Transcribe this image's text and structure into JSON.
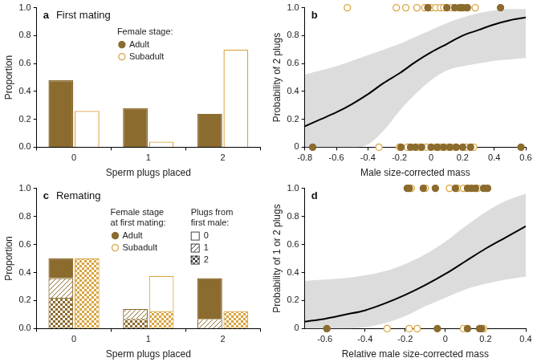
{
  "chart_data": [
    {
      "type": "bar",
      "panel_label": "a",
      "title": "First mating",
      "x_label": "Sperm plugs placed",
      "y_label": "Proportion",
      "categories": [
        "0",
        "1",
        "2"
      ],
      "legend_title": [
        "Female stage:"
      ],
      "series": [
        {
          "name": "Adult",
          "color": "#8b6b2e",
          "marker": "circle",
          "values": [
            0.48,
            0.28,
            0.24
          ]
        },
        {
          "name": "Subadult",
          "color": "#d9a441",
          "marker": "open_circle",
          "values": [
            0.26,
            0.04,
            0.7
          ]
        }
      ],
      "ylim": [
        0,
        1
      ],
      "yticks": [
        {
          "value": 0,
          "label": "0.0"
        },
        0.2,
        0.4,
        0.6,
        0.8,
        {
          "value": 1,
          "label": "1.0"
        }
      ],
      "grid": false
    },
    {
      "type": "scatter",
      "panel_label": "b",
      "x_label": "Male size-corrected mass",
      "y_label": "Probability of 2 plugs",
      "series": [
        {
          "color": "#8b6b2e",
          "marker": "circle",
          "x": [
            -0.02,
            0.1,
            0.15,
            0.18,
            0.2,
            0.23,
            0.44,
            -0.75,
            -0.19,
            -0.13,
            -0.1,
            -0.06,
            0.0,
            0.04,
            0.08,
            0.12,
            0.16,
            0.2,
            0.25,
            0.57
          ],
          "values": [
            1,
            1,
            1,
            1,
            1,
            1,
            1,
            0,
            0,
            0,
            0,
            0,
            0,
            0,
            0,
            0,
            0,
            0,
            0,
            0
          ]
        },
        {
          "color": "#d9a441",
          "marker": "open_circle",
          "x": [
            -0.53,
            -0.22,
            -0.16,
            -0.09,
            -0.04,
            0.0,
            0.03,
            0.06,
            0.08,
            0.13,
            0.19,
            0.22,
            0.28,
            -0.33,
            -0.2,
            -0.15,
            -0.08,
            -0.03,
            0.03,
            0.06,
            0.11,
            0.15,
            0.22,
            0.27
          ],
          "values": [
            1,
            1,
            1,
            1,
            1,
            1,
            1,
            1,
            1,
            1,
            1,
            1,
            1,
            0,
            0,
            0,
            0,
            0,
            0,
            0,
            0,
            0,
            0,
            0
          ]
        }
      ],
      "fit": {
        "color": "#000000",
        "x": [
          -0.8,
          -0.7,
          -0.6,
          -0.5,
          -0.4,
          -0.3,
          -0.2,
          -0.1,
          0.0,
          0.1,
          0.2,
          0.3,
          0.4,
          0.5,
          0.6
        ],
        "values": [
          0.15,
          0.2,
          0.25,
          0.31,
          0.38,
          0.46,
          0.53,
          0.61,
          0.68,
          0.74,
          0.8,
          0.84,
          0.88,
          0.91,
          0.93
        ],
        "lower": [
          0,
          0,
          0,
          0,
          0.02,
          0.12,
          0.26,
          0.38,
          0.48,
          0.55,
          0.58,
          0.6,
          0.62,
          0.63,
          0.64
        ],
        "upper": [
          0.52,
          0.55,
          0.58,
          0.62,
          0.66,
          0.7,
          0.74,
          0.79,
          0.84,
          0.89,
          0.93,
          0.96,
          0.98,
          0.99,
          0.99
        ]
      },
      "xlim": [
        -0.8,
        0.6
      ],
      "xticks": [
        -0.8,
        -0.6,
        -0.4,
        -0.2,
        0,
        0.2,
        0.4,
        0.6
      ],
      "ylim": [
        0,
        1
      ],
      "yticks": [
        0,
        0.2,
        0.4,
        0.6,
        0.8,
        {
          "value": 1,
          "label": "1.0"
        }
      ],
      "grid": false
    },
    {
      "type": "bar",
      "stacked": true,
      "panel_label": "c",
      "title": "Remating",
      "x_label": "Sperm plugs placed",
      "y_label": "Proportion",
      "categories": [
        "0",
        "1",
        "2"
      ],
      "legend_title": [
        "Female stage",
        "at first mating:"
      ],
      "segment_legend_title": [
        "Plugs from",
        "first male:"
      ],
      "series": [
        {
          "name": "Adult",
          "color": "#8b6b2e",
          "marker": "circle",
          "stack": [
            {
              "name": "0",
              "values": [
                0.14,
                0,
                0.29
              ]
            },
            {
              "name": "1",
              "values": [
                0.14,
                0.07,
                0.07
              ]
            },
            {
              "name": "2",
              "values": [
                0.22,
                0.07,
                0
              ]
            }
          ]
        },
        {
          "name": "Subadult",
          "color": "#d9a441",
          "marker": "open_circle",
          "stack": [
            {
              "name": "0",
              "values": [
                0,
                0.25,
                0
              ]
            },
            {
              "name": "1",
              "values": [
                0,
                0,
                0
              ]
            },
            {
              "name": "2",
              "values": [
                0.5,
                0.125,
                0.125
              ]
            }
          ]
        }
      ],
      "ylim": [
        0,
        1
      ],
      "yticks": [
        {
          "value": 0,
          "label": "0.0"
        },
        0.2,
        0.4,
        0.6,
        0.8,
        {
          "value": 1,
          "label": "1.0"
        }
      ],
      "grid": false
    },
    {
      "type": "scatter",
      "panel_label": "d",
      "x_label": "Relative male size-corrected mass",
      "y_label": "Probability of 1 or 2 plugs",
      "series": [
        {
          "color": "#8b6b2e",
          "marker": "circle",
          "x": [
            -0.19,
            -0.18,
            -0.11,
            -0.05,
            0.05,
            0.11,
            0.13,
            0.15,
            0.19,
            0.21,
            -0.59,
            -0.04,
            0.11,
            0.17,
            0.18
          ],
          "values": [
            1,
            1,
            1,
            1,
            1,
            1,
            1,
            1,
            1,
            1,
            0,
            0,
            0,
            0,
            0
          ]
        },
        {
          "color": "#d9a441",
          "marker": "open_circle",
          "x": [
            -0.17,
            -0.1,
            0.02,
            0.06,
            0.09,
            0.16,
            0.2,
            -0.29,
            -0.18,
            -0.14,
            0.09,
            0.19
          ],
          "values": [
            1,
            1,
            1,
            1,
            1,
            1,
            1,
            0,
            0,
            0,
            0,
            0
          ]
        }
      ],
      "fit": {
        "color": "#000000",
        "x": [
          -0.7,
          -0.6,
          -0.5,
          -0.4,
          -0.3,
          -0.2,
          -0.1,
          0.0,
          0.1,
          0.2,
          0.3,
          0.4
        ],
        "values": [
          0.05,
          0.07,
          0.1,
          0.13,
          0.18,
          0.24,
          0.31,
          0.39,
          0.48,
          0.57,
          0.65,
          0.73
        ],
        "lower": [
          0,
          0,
          0,
          0.01,
          0.04,
          0.09,
          0.16,
          0.22,
          0.28,
          0.32,
          0.35,
          0.37
        ],
        "upper": [
          0.34,
          0.35,
          0.36,
          0.38,
          0.41,
          0.46,
          0.53,
          0.62,
          0.73,
          0.83,
          0.91,
          0.96
        ]
      },
      "xlim": [
        -0.7,
        0.4
      ],
      "xticks": [
        -0.6,
        -0.4,
        -0.2,
        0,
        0.2,
        0.4
      ],
      "ylim": [
        0,
        1
      ],
      "yticks": [
        0,
        0.2,
        0.4,
        0.6,
        0.8,
        {
          "value": 1,
          "label": "1.0"
        }
      ],
      "grid": false
    }
  ]
}
